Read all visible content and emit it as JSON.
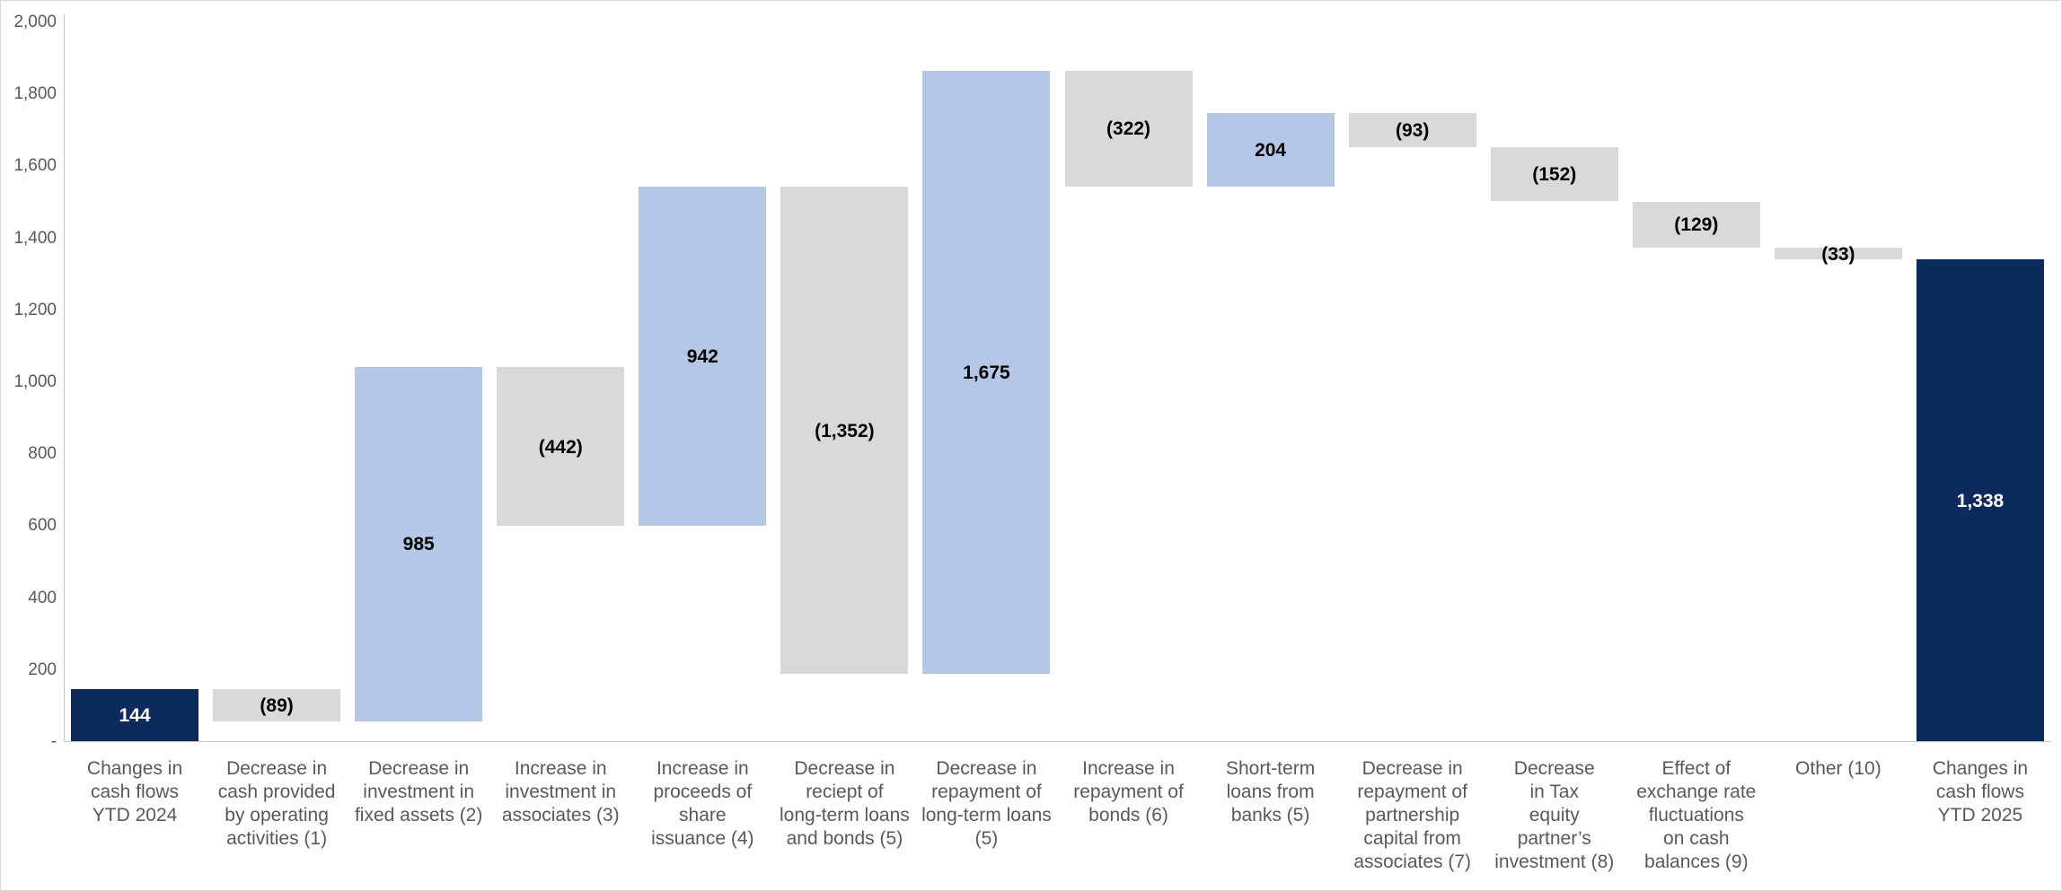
{
  "chart_data": {
    "type": "bar",
    "subtype": "waterfall",
    "title": "",
    "xlabel": "",
    "ylabel": "",
    "ylim": [
      0,
      2000
    ],
    "ytick_interval": 200,
    "grid": false,
    "legend": false,
    "yticks": [
      {
        "value": 2000,
        "label": "2,000"
      },
      {
        "value": 1800,
        "label": "1,800"
      },
      {
        "value": 1600,
        "label": "1,600"
      },
      {
        "value": 1400,
        "label": "1,400"
      },
      {
        "value": 1200,
        "label": "1,200"
      },
      {
        "value": 1000,
        "label": "1,000"
      },
      {
        "value": 800,
        "label": "800"
      },
      {
        "value": 600,
        "label": "600"
      },
      {
        "value": 400,
        "label": "400"
      },
      {
        "value": 200,
        "label": "200"
      },
      {
        "value": 0,
        "label": "-"
      }
    ],
    "colors": {
      "total": "#0d2a5c",
      "increase": "#b4c7e7",
      "decrease": "#d9d9d9",
      "label_on_total": "#ffffff",
      "label_default": "#000000",
      "axis": "#c6c6c6",
      "category_text": "#595959"
    },
    "bars": [
      {
        "category": "Changes in cash flows YTD 2024",
        "category_lines": [
          "Changes in",
          "cash flows",
          "YTD 2024"
        ],
        "label": "144",
        "value": 144,
        "kind": "total",
        "start": 0,
        "end": 144
      },
      {
        "category": "Decrease in cash provided by operating activities (1)",
        "category_lines": [
          "Decrease in",
          "cash provided",
          "by operating",
          "activities (1)"
        ],
        "label": "(89)",
        "value": -89,
        "kind": "decrease",
        "start": 55,
        "end": 144
      },
      {
        "category": "Decrease in investment in fixed assets (2)",
        "category_lines": [
          "Decrease in",
          "investment in",
          "fixed assets (2)"
        ],
        "label": "985",
        "value": 985,
        "kind": "increase",
        "start": 55,
        "end": 1040
      },
      {
        "category": "Increase in investment in associates (3)",
        "category_lines": [
          "Increase in",
          "investment in",
          "associates (3)"
        ],
        "label": "(442)",
        "value": -442,
        "kind": "decrease",
        "start": 598,
        "end": 1040
      },
      {
        "category": "Increase in proceeds of share issuance (4)",
        "category_lines": [
          "Increase in",
          "proceeds of",
          "share",
          "issuance (4)"
        ],
        "label": "942",
        "value": 942,
        "kind": "increase",
        "start": 598,
        "end": 1540
      },
      {
        "category": "Decrease in reciept of long-term loans and bonds (5)",
        "category_lines": [
          "Decrease in",
          "reciept of",
          "long-term loans",
          "and bonds (5)"
        ],
        "label": "(1,352)",
        "value": -1352,
        "kind": "decrease",
        "start": 188,
        "end": 1540
      },
      {
        "category": "Decrease in repayment of long-term loans (5)",
        "category_lines": [
          "Decrease in",
          "repayment of",
          "long-term loans",
          "(5)"
        ],
        "label": "1,675",
        "value": 1675,
        "kind": "increase",
        "start": 188,
        "end": 1863
      },
      {
        "category": "Increase in repayment of bonds (6)",
        "category_lines": [
          "Increase in",
          "repayment of",
          "bonds (6)"
        ],
        "label": "(322)",
        "value": -322,
        "kind": "decrease",
        "start": 1541,
        "end": 1863
      },
      {
        "category": "Short-term loans from banks (5)",
        "category_lines": [
          "Short-term",
          "loans from",
          "banks (5)"
        ],
        "label": "204",
        "value": 204,
        "kind": "increase",
        "start": 1541,
        "end": 1745
      },
      {
        "category": "Decrease in repayment of partnership capital from associates (7)",
        "category_lines": [
          "Decrease in",
          "repayment of",
          "partnership",
          "capital from",
          "associates (7)"
        ],
        "label": "(93)",
        "value": -93,
        "kind": "decrease",
        "start": 1652,
        "end": 1745
      },
      {
        "category": "Decrease in Tax equity partner’s investment (8)",
        "category_lines": [
          "Decrease",
          "in Tax",
          "equity",
          "partner’s",
          "investment (8)"
        ],
        "label": "(152)",
        "value": -152,
        "kind": "decrease",
        "start": 1500,
        "end": 1652
      },
      {
        "category": "Effect of exchange rate fluctuations on cash balances (9)",
        "category_lines": [
          "Effect of",
          "exchange rate",
          "fluctuations",
          "on cash",
          "balances (9)"
        ],
        "label": "(129)",
        "value": -129,
        "kind": "decrease",
        "start": 1371,
        "end": 1500
      },
      {
        "category": "Other (10)",
        "category_lines": [
          "Other (10)"
        ],
        "label": "(33)",
        "value": -33,
        "kind": "decrease",
        "start": 1338,
        "end": 1371
      },
      {
        "category": "Changes in cash flows YTD 2025",
        "category_lines": [
          "Changes in",
          "cash flows",
          "YTD 2025"
        ],
        "label": "1,338",
        "value": 1338,
        "kind": "total",
        "start": 0,
        "end": 1338
      }
    ]
  }
}
